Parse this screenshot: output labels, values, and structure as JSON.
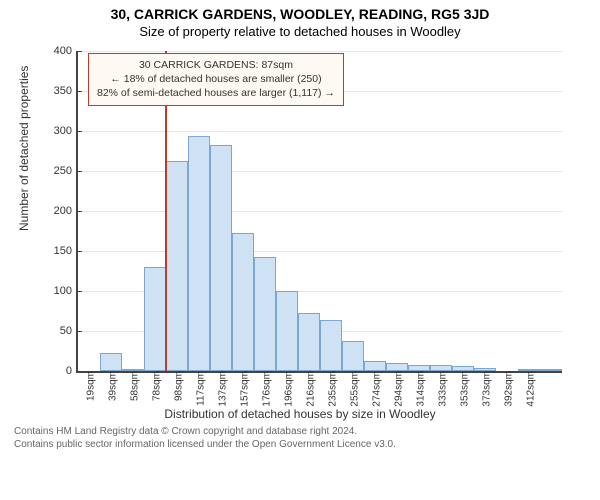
{
  "address": "30, CARRICK GARDENS, WOODLEY, READING, RG5 3JD",
  "subtitle": "Size of property relative to detached houses in Woodley",
  "chart": {
    "type": "histogram",
    "ylabel": "Number of detached properties",
    "xlabel": "Distribution of detached houses by size in Woodley",
    "ylim": [
      0,
      400
    ],
    "ytick_step": 50,
    "xtick_labels": [
      "19sqm",
      "39sqm",
      "58sqm",
      "78sqm",
      "98sqm",
      "117sqm",
      "137sqm",
      "157sqm",
      "176sqm",
      "196sqm",
      "216sqm",
      "235sqm",
      "255sqm",
      "274sqm",
      "294sqm",
      "314sqm",
      "333sqm",
      "353sqm",
      "373sqm",
      "392sqm",
      "412sqm"
    ],
    "values": [
      0,
      22,
      3,
      130,
      263,
      294,
      283,
      172,
      143,
      100,
      72,
      64,
      37,
      12,
      10,
      8,
      7,
      6,
      4,
      0,
      3,
      2
    ],
    "bar_fill": "#cfe2f3",
    "bar_border": "#7ba7d1",
    "grid_color": "#e6e6e6",
    "background_color": "#ffffff",
    "reference_line": {
      "index": 3.45,
      "color": "#c0392b"
    },
    "callout": {
      "border_color": "#c0392b",
      "lines": [
        "30 CARRICK GARDENS: 87sqm",
        "← 18% of detached houses are smaller (250)",
        "82% of semi-detached houses are larger (1,117) →"
      ]
    }
  },
  "footer": {
    "line1": "Contains HM Land Registry data © Crown copyright and database right 2024.",
    "line2": "Contains public sector information licensed under the Open Government Licence v3.0."
  }
}
